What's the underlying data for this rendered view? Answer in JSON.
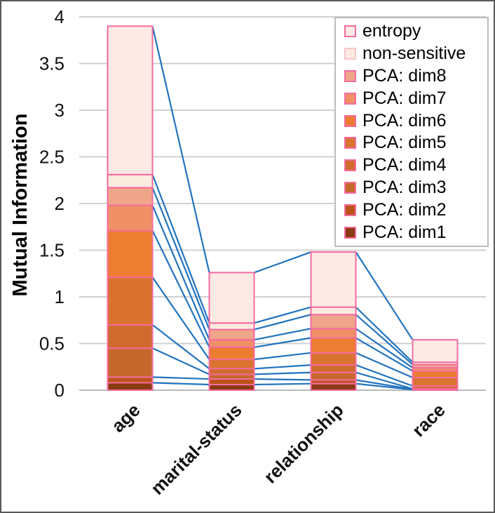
{
  "chart_data": {
    "type": "bar",
    "variant": "stacked-with-series-connector-lines",
    "title": "",
    "ylabel": "Mutual Information",
    "xlabel": "",
    "ylim": [
      0,
      4
    ],
    "yticks": [
      0,
      0.5,
      1,
      1.5,
      2,
      2.5,
      3,
      3.5,
      4
    ],
    "ytick_labels": [
      "0",
      "0.5",
      "1",
      "1.5",
      "2",
      "2.5",
      "3",
      "3.5",
      "4"
    ],
    "categories": [
      "age",
      "marital-status",
      "relationship",
      "race"
    ],
    "series": [
      {
        "name": "PCA: dim1",
        "color": "#8a3b12",
        "values": [
          0.08,
          0.06,
          0.07,
          0.005
        ]
      },
      {
        "name": "PCA: dim2",
        "color": "#bc5318",
        "values": [
          0.06,
          0.06,
          0.04,
          0.005
        ]
      },
      {
        "name": "PCA: dim3",
        "color": "#c5682c",
        "values": [
          0.31,
          0.05,
          0.08,
          0.005
        ]
      },
      {
        "name": "PCA: dim4",
        "color": "#cf6b2c",
        "values": [
          0.25,
          0.06,
          0.08,
          0.03
        ]
      },
      {
        "name": "PCA: dim5",
        "color": "#d9732f",
        "values": [
          0.51,
          0.1,
          0.13,
          0.09
        ]
      },
      {
        "name": "PCA: dim6",
        "color": "#ed7d31",
        "values": [
          0.5,
          0.13,
          0.16,
          0.07
        ]
      },
      {
        "name": "PCA: dim7",
        "color": "#ef9066",
        "values": [
          0.27,
          0.08,
          0.1,
          0.035
        ]
      },
      {
        "name": "PCA: dim8",
        "color": "#efa58a",
        "values": [
          0.19,
          0.11,
          0.15,
          0.035
        ]
      },
      {
        "name": "non-sensitive",
        "color": "#fcebdf",
        "swatch_border": "#f8c2ce",
        "values": [
          0.14,
          0.07,
          0.08,
          0.025
        ]
      },
      {
        "name": "entropy",
        "color": "#fdeae4",
        "values": [
          1.59,
          0.54,
          0.59,
          0.24
        ]
      }
    ],
    "stack_totals": [
      3.9,
      1.26,
      1.48,
      0.54
    ],
    "legend": {
      "position": "top-right",
      "order_top_to_bottom": [
        "entropy",
        "non-sensitive",
        "PCA: dim8",
        "PCA: dim7",
        "PCA: dim6",
        "PCA: dim5",
        "PCA: dim4",
        "PCA: dim3",
        "PCA: dim2",
        "PCA: dim1"
      ]
    },
    "grid": true,
    "colors": {
      "connector_line": "#2173bf",
      "segment_border": "#f56ba0",
      "gridline": "#d0d0d0",
      "axis_line": "#b9b9b9",
      "legend_border": "#bdbdbd",
      "frame_border": "#595959"
    }
  }
}
